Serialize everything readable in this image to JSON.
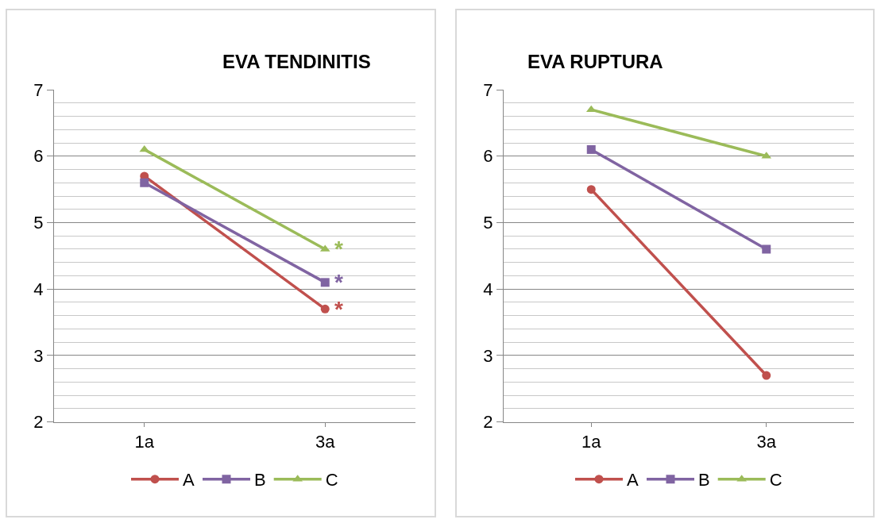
{
  "chart_data": [
    {
      "type": "line",
      "title": "EVA TENDINITIS",
      "categories": [
        "1a",
        "3a"
      ],
      "ylim": [
        2,
        7
      ],
      "yticks": [
        2,
        3,
        4,
        5,
        6,
        7
      ],
      "grid": "y",
      "legend": "bottom",
      "series": [
        {
          "name": "A",
          "color": "#c0504d",
          "marker": "circle",
          "values": [
            5.7,
            3.7
          ]
        },
        {
          "name": "B",
          "color": "#8064a2",
          "marker": "square",
          "values": [
            5.6,
            4.1
          ]
        },
        {
          "name": "C",
          "color": "#9bbb59",
          "marker": "triangle",
          "values": [
            6.1,
            4.6
          ]
        }
      ],
      "annotations": [
        {
          "text": "*",
          "x": "3a",
          "y": 4.6
        },
        {
          "text": "*",
          "x": "3a",
          "y": 4.1
        },
        {
          "text": "*",
          "x": "3a",
          "y": 3.7
        }
      ]
    },
    {
      "type": "line",
      "title": "EVA RUPTURA",
      "categories": [
        "1a",
        "3a"
      ],
      "ylim": [
        2,
        7
      ],
      "yticks": [
        2,
        3,
        4,
        5,
        6,
        7
      ],
      "grid": "y",
      "legend": "bottom",
      "series": [
        {
          "name": "A",
          "color": "#c0504d",
          "marker": "circle",
          "values": [
            5.5,
            2.7
          ]
        },
        {
          "name": "B",
          "color": "#8064a2",
          "marker": "square",
          "values": [
            6.1,
            4.6
          ]
        },
        {
          "name": "C",
          "color": "#9bbb59",
          "marker": "triangle",
          "values": [
            6.7,
            6.0
          ]
        }
      ]
    }
  ]
}
